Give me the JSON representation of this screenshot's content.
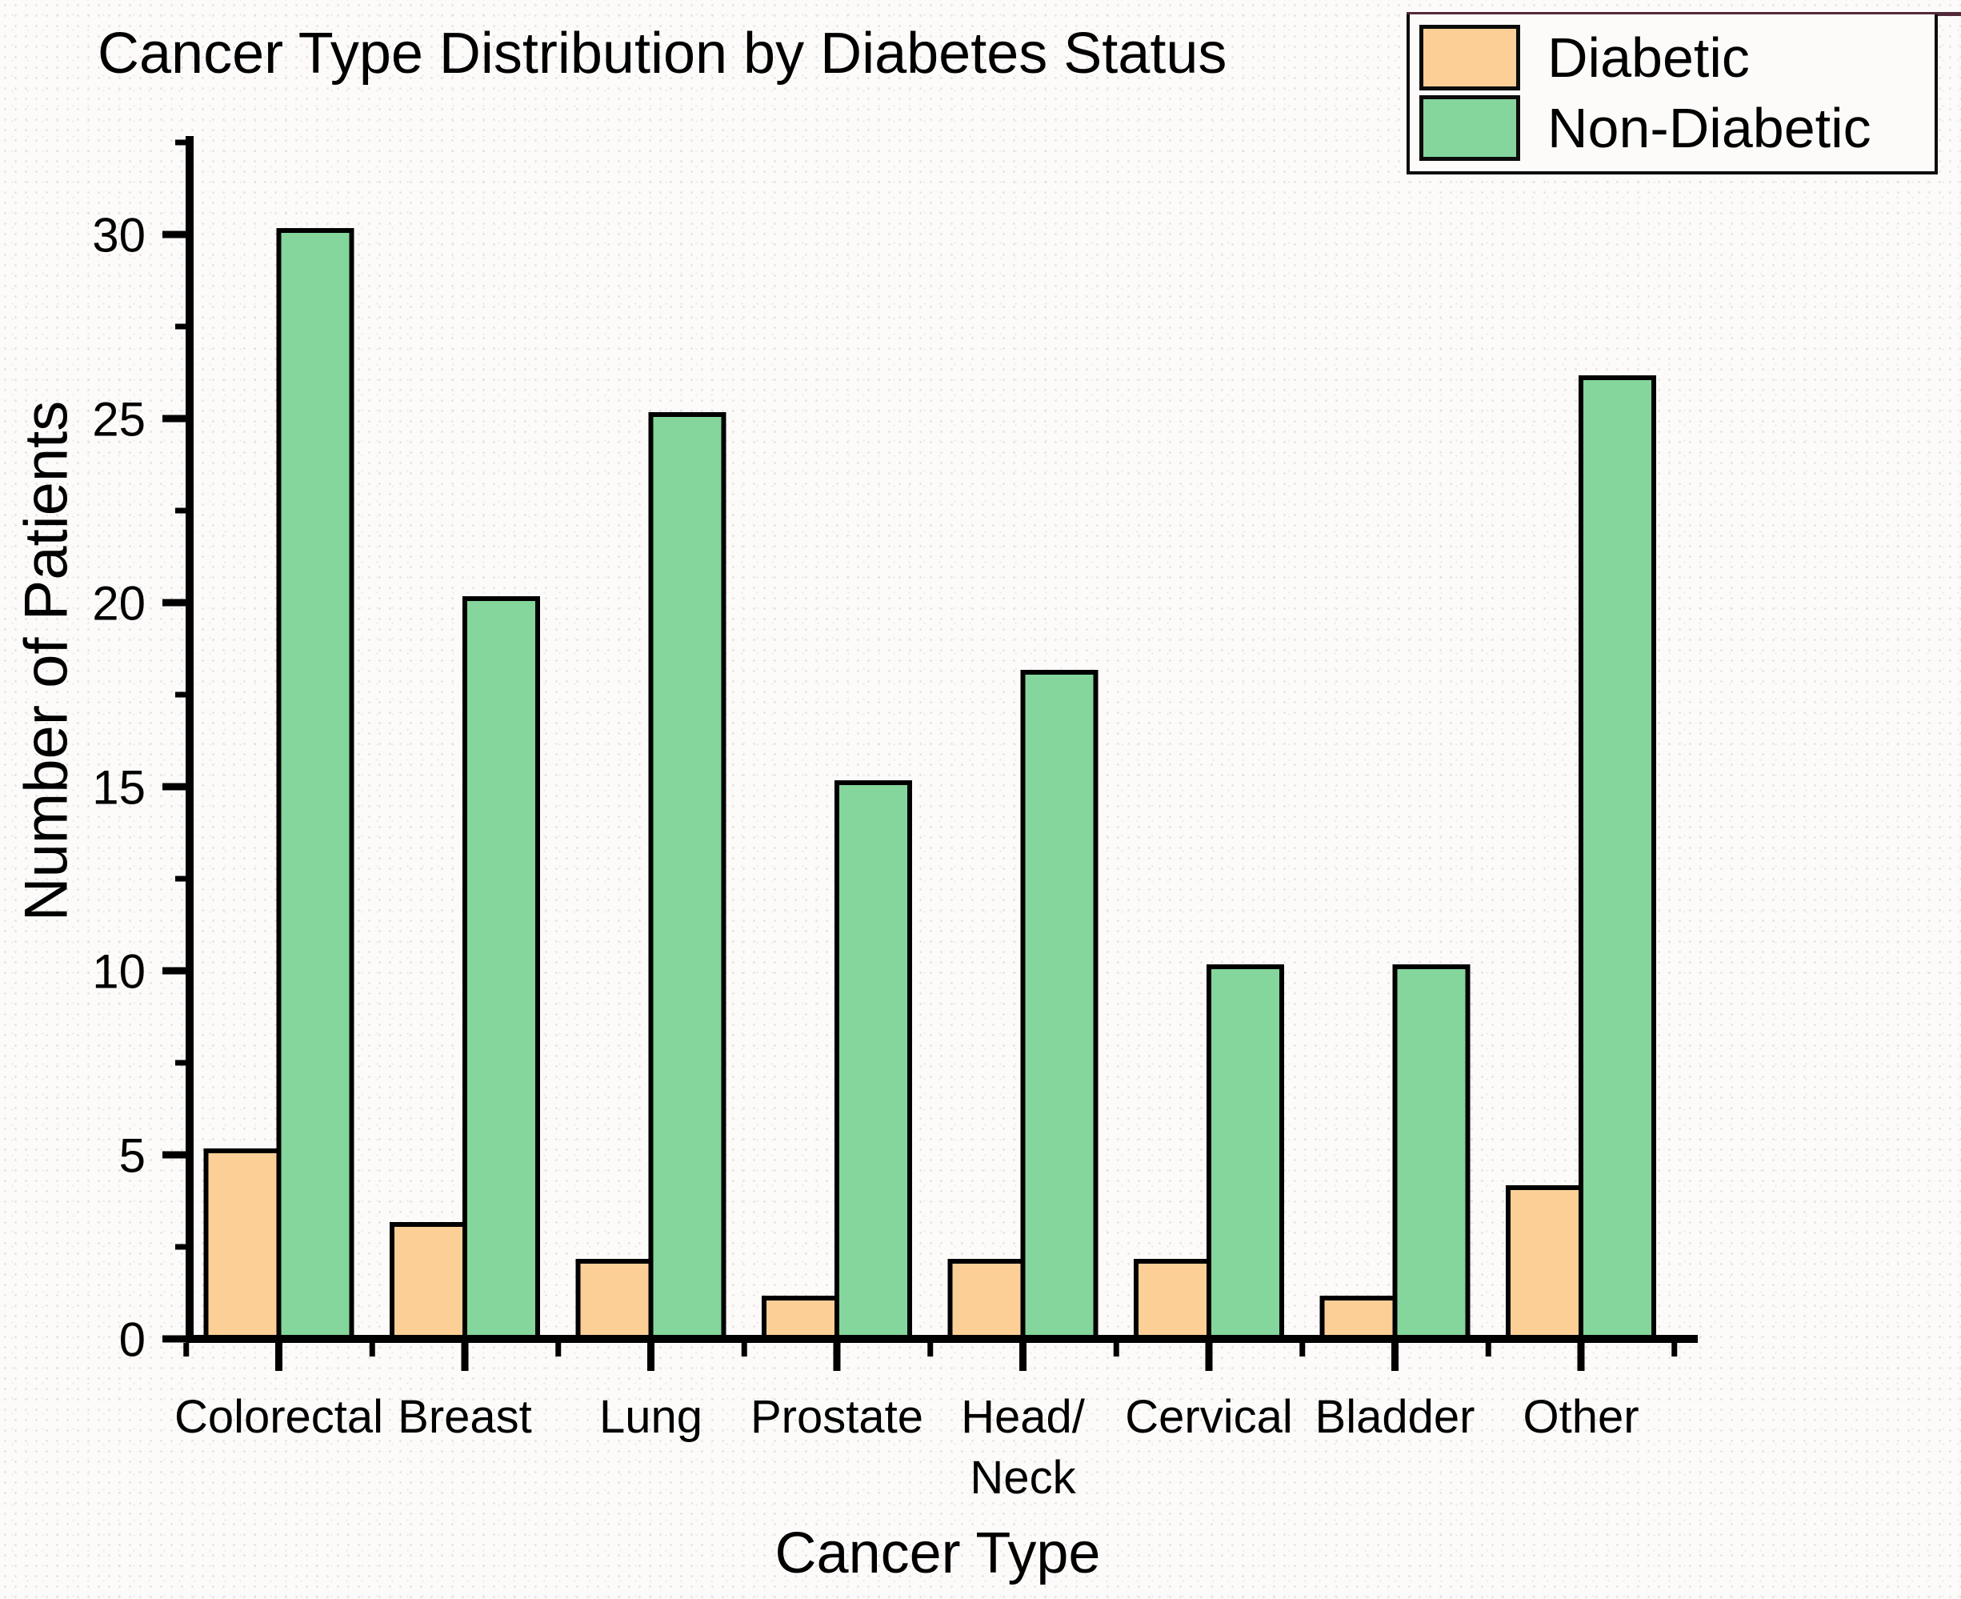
{
  "chart": {
    "title": "Cancer Type Distribution by Diabetes Status",
    "x_axis_title": "Cancer Type",
    "y_axis_title": "Number of Patients"
  },
  "legend": {
    "items": [
      {
        "label": "Diabetic",
        "color": "#fccf97"
      },
      {
        "label": "Non-Diabetic",
        "color": "#84d69c"
      }
    ]
  },
  "colors": {
    "bar_outline": "#000000",
    "axis": "#000000",
    "legend_border": "#0c0c0c",
    "legend_top_line": "#532a3a",
    "background": "#fcfbfa"
  },
  "chart_data": {
    "type": "bar",
    "title": "Cancer Type Distribution by Diabetes Status",
    "xlabel": "Cancer Type",
    "ylabel": "Number of Patients",
    "categories": [
      "Colorectal",
      "Breast",
      "Lung",
      "Prostate",
      "Head/\nNeck",
      "Cervical",
      "Bladder",
      "Other"
    ],
    "series": [
      {
        "name": "Diabetic",
        "color": "#fccf97",
        "values": [
          5,
          3,
          2,
          1,
          2,
          2,
          1,
          4
        ]
      },
      {
        "name": "Non-Diabetic",
        "color": "#84d69c",
        "values": [
          30,
          20,
          25,
          15,
          18,
          10,
          10,
          26
        ]
      }
    ],
    "ylim": [
      0,
      32.5
    ],
    "y_major_ticks": [
      0,
      5,
      10,
      15,
      20,
      25,
      30
    ],
    "y_minor_step": 2.5,
    "grid": false,
    "legend_position": "top-right"
  }
}
